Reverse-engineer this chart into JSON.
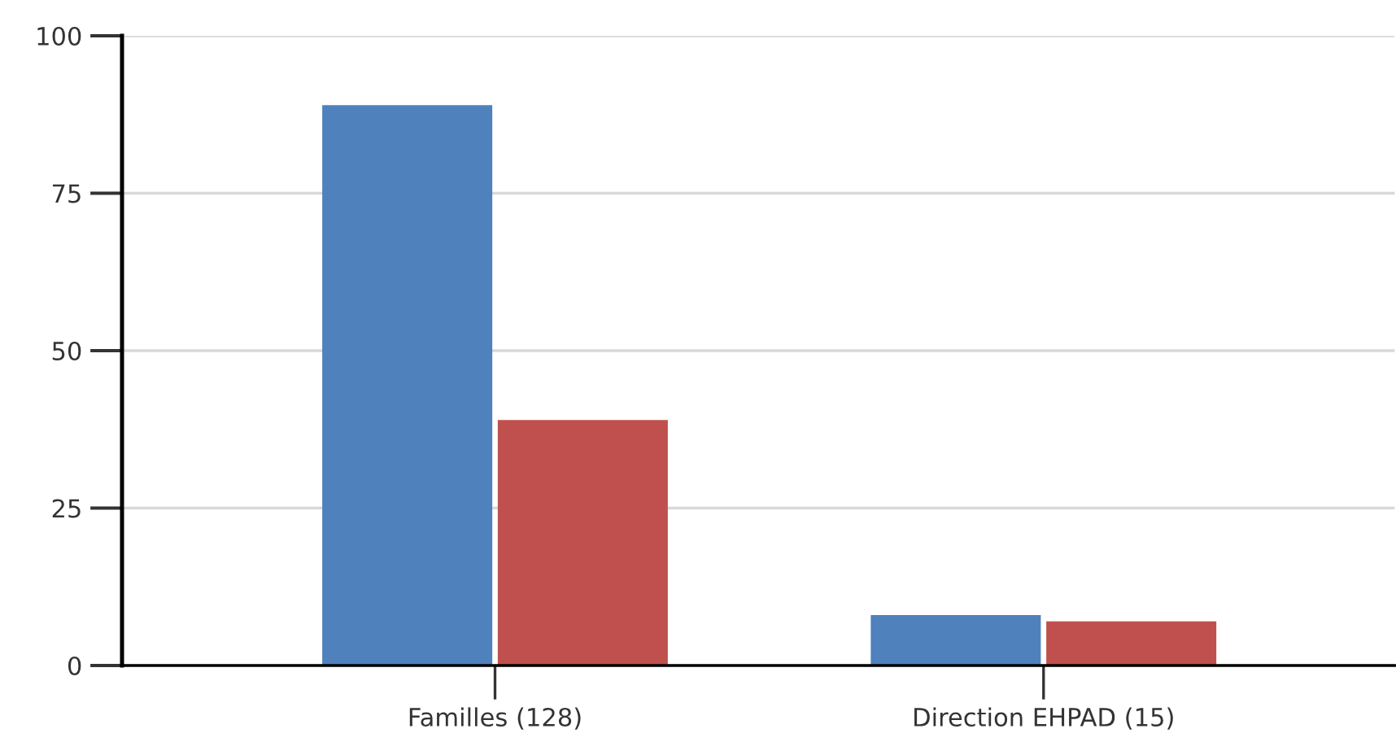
{
  "chart_data": {
    "type": "bar",
    "categories": [
      "Familles (128)",
      "Direction EHPAD (15)"
    ],
    "series": [
      {
        "color": "#4f81bd",
        "values": [
          89,
          8
        ]
      },
      {
        "color": "#c0504d",
        "values": [
          39,
          7
        ]
      }
    ],
    "ylim": [
      0,
      100
    ],
    "yticks": [
      0,
      25,
      50,
      75,
      100
    ],
    "grid": "y",
    "legend": false
  }
}
